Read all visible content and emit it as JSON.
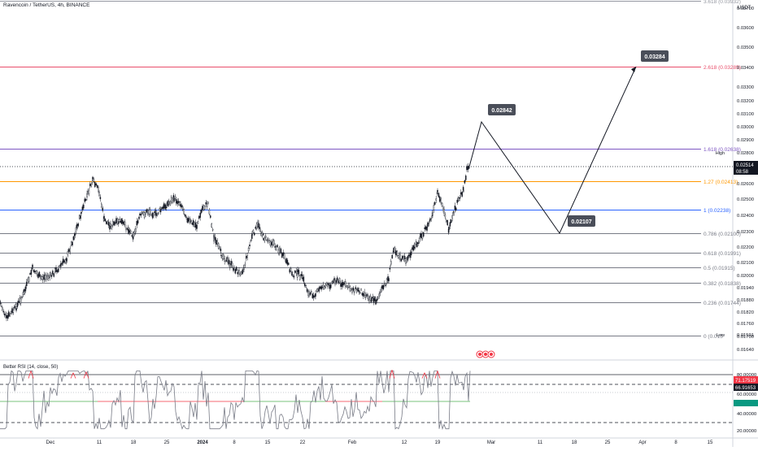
{
  "header": {
    "symbol_title": "Ravencoin / TetherUS, 4h, BINANCE",
    "currency": "USDT"
  },
  "rsi_panel": {
    "title": "Better RSI (14, close, 50)",
    "current_value_1": "71.17519",
    "current_value_2": "66.91653",
    "axis_labels": [
      "80.00000",
      "60.00000",
      "40.00000",
      "20.00000"
    ],
    "overbought_level": 80,
    "oversold_level": 30,
    "mid_level": 50
  },
  "price_axis": {
    "ticks": [
      "0.03700",
      "0.03600",
      "0.03500",
      "0.03400",
      "0.03300",
      "0.03200",
      "0.03100",
      "0.03000",
      "0.02900",
      "0.02800",
      "0.02700",
      "0.02600",
      "0.02500",
      "0.02400",
      "0.02300",
      "0.02200",
      "0.02100",
      "0.02000",
      "0.01940",
      "0.01880",
      "0.01820",
      "0.01760",
      "0.01700",
      "0.01640",
      "0.01580",
      "0.01535"
    ],
    "current_price": "0.02514",
    "countdown": "08:58",
    "high_label": "High",
    "high_value": "0.02600",
    "low_label": "Low",
    "low_value": "0.01591"
  },
  "time_axis": {
    "labels": [
      "Dec",
      "11",
      "18",
      "25",
      "2024",
      "8",
      "15",
      "22",
      "Feb",
      "12",
      "19",
      "Mar",
      "11",
      "18",
      "25",
      "Apr",
      "8",
      "15"
    ]
  },
  "fib_levels": [
    {
      "label": "3.618 (0.03932)",
      "color": "#9598a1",
      "value": 0.03932
    },
    {
      "label": "2.618 (0.03285)",
      "color": "#e84d6a",
      "value": 0.03285
    },
    {
      "label": "1.618 (0.02638)",
      "color": "#7e57c2",
      "value": 0.02638
    },
    {
      "label": "1.27 (0.02413)",
      "color": "#ff9800",
      "value": 0.02413
    },
    {
      "label": "1 (0.02238)",
      "color": "#2962ff",
      "value": 0.02238
    },
    {
      "label": "0.786 (0.02100)",
      "color": "#787b86",
      "value": 0.021
    },
    {
      "label": "0.618 (0.01991)",
      "color": "#787b86",
      "value": 0.01991
    },
    {
      "label": "0.5 (0.01915)",
      "color": "#787b86",
      "value": 0.01915
    },
    {
      "label": "0.382 (0.01838)",
      "color": "#787b86",
      "value": 0.01838
    },
    {
      "label": "0.236 (0.01744)",
      "color": "#787b86",
      "value": 0.01744
    },
    {
      "label": "0 (0.015",
      "color": "#787b86",
      "value": 0.0159
    }
  ],
  "projection": {
    "points": [
      {
        "label": "0.02842",
        "value": 0.02842
      },
      {
        "label": "0.02107",
        "value": 0.02107
      },
      {
        "label": "0.03284",
        "value": 0.03284
      }
    ]
  },
  "chart_data": {
    "type": "candlestick",
    "title": "Ravencoin / TetherUS, 4h, BINANCE",
    "x_axis_labels": [
      "Dec",
      "11",
      "18",
      "25",
      "2024",
      "8",
      "15",
      "22",
      "Feb",
      "12",
      "19",
      "Mar",
      "11",
      "18",
      "25",
      "Apr",
      "8",
      "15"
    ],
    "price_path_approx": [
      {
        "date": "Dec",
        "price": 0.0167
      },
      {
        "date": "11",
        "price": 0.0236
      },
      {
        "date": "18",
        "price": 0.0208
      },
      {
        "date": "25",
        "price": 0.0221
      },
      {
        "date": "2024",
        "price": 0.0227
      },
      {
        "date": "8",
        "price": 0.02
      },
      {
        "date": "15",
        "price": 0.0213
      },
      {
        "date": "22",
        "price": 0.0186
      },
      {
        "date": "Feb",
        "price": 0.0183
      },
      {
        "date": "12",
        "price": 0.02
      },
      {
        "date": "19",
        "price": 0.0224
      },
      {
        "date": "last",
        "price": 0.02514
      }
    ],
    "current_price": 0.02514,
    "period_high": 0.026,
    "period_low": 0.01591,
    "series": [
      {
        "name": "Better RSI (14, close, 50)",
        "last_values": [
          71.17519,
          66.91653
        ]
      }
    ],
    "grid": false
  },
  "colors": {
    "candle": "#131722",
    "projection_label_bg": "#4a4e59",
    "rsi_line": "#787b86",
    "rsi_overbought": "#f23645",
    "rsi_band_green": "#4caf50",
    "rsi_band_red": "#f23645",
    "rsi_badge_red": "#f23645",
    "rsi_badge_green": "#089981"
  }
}
